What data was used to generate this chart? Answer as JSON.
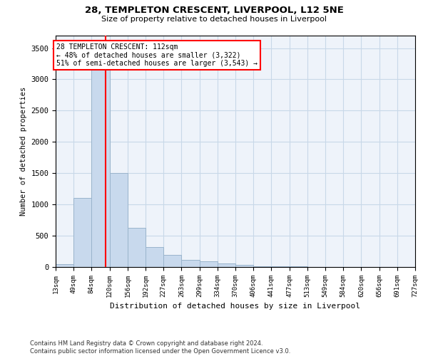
{
  "title": "28, TEMPLETON CRESCENT, LIVERPOOL, L12 5NE",
  "subtitle": "Size of property relative to detached houses in Liverpool",
  "xlabel": "Distribution of detached houses by size in Liverpool",
  "ylabel": "Number of detached properties",
  "bar_color": "#c8d9ed",
  "bar_edge_color": "#9ab4cc",
  "grid_color": "#c8d8e8",
  "background_color": "#eef3fa",
  "vline_x": 112,
  "vline_color": "red",
  "annotation_text": "28 TEMPLETON CRESCENT: 112sqm\n← 48% of detached houses are smaller (3,322)\n51% of semi-detached houses are larger (3,543) →",
  "annotation_box_color": "white",
  "annotation_box_edge": "red",
  "footer_text": "Contains HM Land Registry data © Crown copyright and database right 2024.\nContains public sector information licensed under the Open Government Licence v3.0.",
  "bin_edges": [
    13,
    49,
    84,
    120,
    156,
    192,
    227,
    263,
    299,
    334,
    370,
    406,
    441,
    477,
    513,
    549,
    584,
    620,
    656,
    691,
    727
  ],
  "bar_heights": [
    50,
    1100,
    3300,
    1500,
    625,
    320,
    190,
    110,
    90,
    55,
    30,
    15,
    8,
    8,
    5,
    3,
    2,
    1,
    1,
    1
  ],
  "ylim": [
    0,
    3700
  ],
  "yticks": [
    0,
    500,
    1000,
    1500,
    2000,
    2500,
    3000,
    3500
  ]
}
